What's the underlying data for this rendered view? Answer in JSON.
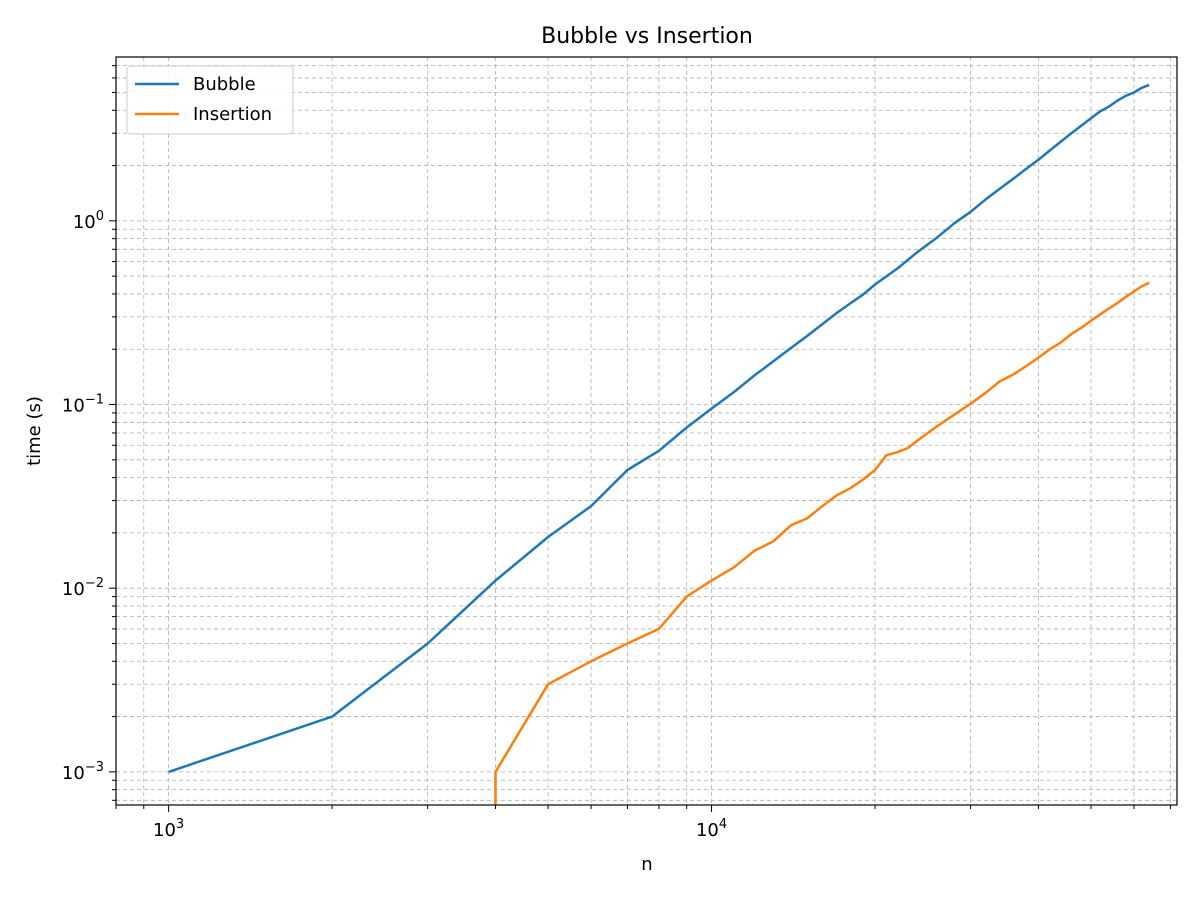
{
  "chart_data": {
    "type": "line",
    "title": "Bubble vs Insertion",
    "xlabel": "n",
    "ylabel": "time (s)",
    "xscale": "log",
    "yscale": "log",
    "xlim": [
      800,
      72000
    ],
    "ylim": [
      0.00066,
      7.8
    ],
    "grid": true,
    "legend_position": "upper-left",
    "x_ticks": [
      {
        "value": 1000,
        "base": "10",
        "exp": "3"
      },
      {
        "value": 10000,
        "base": "10",
        "exp": "4"
      }
    ],
    "y_ticks": [
      {
        "value": 0.001,
        "base": "10",
        "exp": "−3"
      },
      {
        "value": 0.01,
        "base": "10",
        "exp": "−2"
      },
      {
        "value": 0.1,
        "base": "10",
        "exp": "−1"
      },
      {
        "value": 1,
        "base": "10",
        "exp": "0"
      }
    ],
    "series": [
      {
        "name": "Bubble",
        "color": "#1f77b4",
        "x": [
          1000,
          2000,
          3000,
          4000,
          5000,
          6000,
          7000,
          8000,
          9000,
          10000,
          11000,
          12000,
          13000,
          14000,
          15000,
          16000,
          17000,
          18000,
          19000,
          20000,
          22000,
          24000,
          26000,
          28000,
          30000,
          32000,
          34000,
          36000,
          38000,
          40000,
          42000,
          44000,
          46000,
          48000,
          50000,
          52000,
          54000,
          56000,
          58000,
          60000,
          62000,
          64000
        ],
        "y": [
          0.001,
          0.002,
          0.005,
          0.011,
          0.019,
          0.028,
          0.044,
          0.056,
          0.075,
          0.095,
          0.117,
          0.144,
          0.172,
          0.203,
          0.236,
          0.274,
          0.315,
          0.355,
          0.396,
          0.45,
          0.55,
          0.68,
          0.81,
          0.97,
          1.12,
          1.31,
          1.5,
          1.7,
          1.92,
          2.15,
          2.42,
          2.7,
          3.0,
          3.3,
          3.62,
          3.95,
          4.2,
          4.52,
          4.8,
          5.0,
          5.3,
          5.5
        ]
      },
      {
        "name": "Insertion",
        "color": "#ff7f0e",
        "x": [
          4000,
          4000,
          5000,
          6000,
          7000,
          8000,
          9000,
          10000,
          11000,
          12000,
          13000,
          14000,
          15000,
          16000,
          17000,
          18000,
          19000,
          20000,
          21000,
          22000,
          23000,
          24000,
          26000,
          28000,
          30000,
          32000,
          34000,
          36000,
          38000,
          40000,
          42000,
          44000,
          46000,
          48000,
          50000,
          52000,
          54000,
          56000,
          58000,
          60000,
          62000,
          64000
        ],
        "y": [
          0.00066,
          0.001,
          0.003,
          0.004,
          0.005,
          0.006,
          0.009,
          0.011,
          0.013,
          0.016,
          0.018,
          0.022,
          0.024,
          0.028,
          0.032,
          0.035,
          0.039,
          0.044,
          0.053,
          0.055,
          0.058,
          0.064,
          0.076,
          0.088,
          0.101,
          0.116,
          0.134,
          0.146,
          0.162,
          0.18,
          0.2,
          0.218,
          0.242,
          0.262,
          0.286,
          0.31,
          0.334,
          0.358,
          0.386,
          0.413,
          0.44,
          0.46
        ]
      }
    ]
  }
}
